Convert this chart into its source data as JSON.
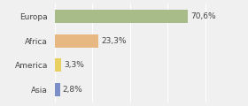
{
  "categories": [
    "Europa",
    "Africa",
    "America",
    "Asia"
  ],
  "values": [
    70.6,
    23.3,
    3.3,
    2.8
  ],
  "labels": [
    "70,6%",
    "23,3%",
    "3,3%",
    "2,8%"
  ],
  "bar_colors": [
    "#a8bc8a",
    "#e8b882",
    "#e8d060",
    "#7b8ec8"
  ],
  "background_color": "#f0f0f0",
  "xlim": [
    0,
    100
  ],
  "bar_height": 0.55,
  "label_fontsize": 6.5,
  "tick_fontsize": 6.5
}
